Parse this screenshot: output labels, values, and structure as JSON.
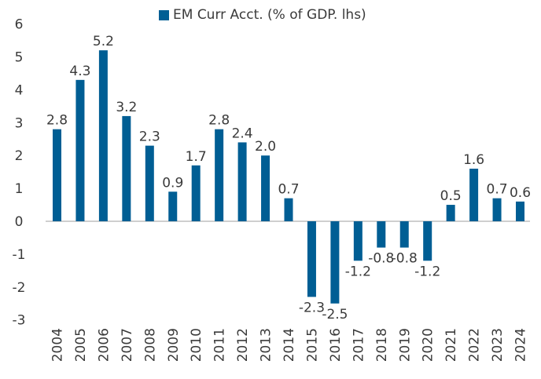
{
  "chart_data": {
    "type": "bar",
    "title": "",
    "xlabel": "",
    "ylabel": "",
    "categories": [
      "2004",
      "2005",
      "2006",
      "2007",
      "2008",
      "2009",
      "2010",
      "2011",
      "2012",
      "2013",
      "2014",
      "2015",
      "2016",
      "2017",
      "2018",
      "2019",
      "2020",
      "2021",
      "2022",
      "2023",
      "2024"
    ],
    "series": [
      {
        "name": "EM Curr Acct. (% of GDP. lhs)",
        "values": [
          2.8,
          4.3,
          5.2,
          3.2,
          2.3,
          0.9,
          1.7,
          2.8,
          2.4,
          2.0,
          0.7,
          -2.3,
          -2.5,
          -1.2,
          -0.8,
          -0.8,
          -1.2,
          0.5,
          1.6,
          0.7,
          0.6
        ],
        "labels": [
          "2.8",
          "4.3",
          "5.2",
          "3.2",
          "2.3",
          "0.9",
          "1.7",
          "2.8",
          "2.4",
          "2.0",
          "0.7",
          "-2.3",
          "-2.5",
          "-1.2",
          "-0.8",
          "-0.8",
          "-1.2",
          "0.5",
          "1.6",
          "0.7",
          "0.6"
        ],
        "color": "#005e94"
      }
    ],
    "ylim": [
      -3,
      6
    ],
    "yticks": [
      "6",
      "5",
      "4",
      "3",
      "2",
      "1",
      "0",
      "-1",
      "-2",
      "-3"
    ],
    "grid": false,
    "legend_position": "top-center",
    "data_labels": true
  }
}
